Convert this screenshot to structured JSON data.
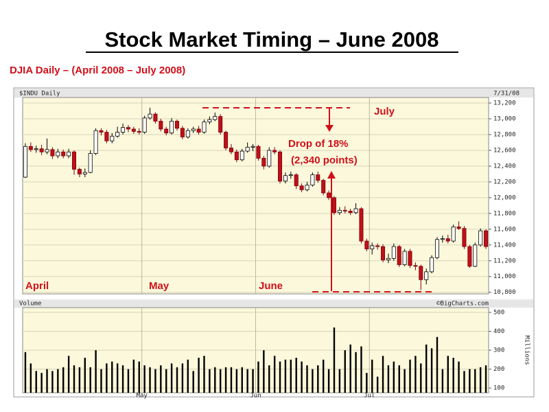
{
  "title": "Stock Market Timing – June 2008",
  "subtitle": "DJIA Daily – (April 2008 – July 2008)",
  "chart_data": [
    {
      "type": "candlestick",
      "title": "$INDU Daily",
      "date": "7/31/08",
      "source": "©BigCharts.com",
      "month_labels": [
        "April",
        "May",
        "June",
        "July"
      ],
      "drop_label": [
        "Drop of 18%",
        "(2,340 points)"
      ],
      "up_color": "#ffffff",
      "down_color": "#c0101a",
      "grid": true,
      "open": [
        12260,
        12650,
        12610,
        12620,
        12580,
        12610,
        12530,
        12580,
        12530,
        12580,
        12360,
        12300,
        12320,
        12560,
        12850,
        12830,
        12720,
        12780,
        12830,
        12890,
        12870,
        12840,
        12830,
        13010,
        13060,
        12970,
        12870,
        12820,
        12970,
        12880,
        12770,
        12850,
        12870,
        12830,
        12960,
        12990,
        13030,
        12830,
        12630,
        12580,
        12480,
        12590,
        12640,
        12650,
        12500,
        12400,
        12600,
        12580,
        12210,
        12280,
        12290,
        12150,
        12100,
        12160,
        12290,
        12220,
        12060,
        12000,
        11810,
        11840,
        11830,
        11810,
        11860,
        11450,
        11350,
        11390,
        11380,
        11210,
        11230,
        11380,
        11150,
        11320,
        11140,
        11130,
        10960,
        11060,
        11240,
        11470,
        11480,
        11450,
        11630,
        11610,
        11380,
        11130,
        11400,
        11580
      ],
      "high": [
        12690,
        12700,
        12660,
        12670,
        12750,
        12640,
        12620,
        12610,
        12620,
        12600,
        12380,
        12370,
        12600,
        12880,
        12880,
        12860,
        12820,
        12900,
        12940,
        12920,
        12900,
        12880,
        13040,
        13140,
        13080,
        13000,
        12900,
        13010,
        12990,
        12910,
        12880,
        12900,
        12910,
        12990,
        13030,
        13080,
        13060,
        12850,
        12680,
        12610,
        12620,
        12700,
        12680,
        12670,
        12530,
        12640,
        12640,
        12600,
        12320,
        12330,
        12310,
        12180,
        12200,
        12320,
        12330,
        12240,
        12090,
        12020,
        11880,
        11890,
        11860,
        11930,
        11880,
        11480,
        11430,
        11420,
        11410,
        11290,
        11420,
        11400,
        11350,
        11350,
        11180,
        11150,
        11100,
        11270,
        11500,
        11520,
        11530,
        11660,
        11700,
        11640,
        11400,
        11430,
        11610,
        11600
      ],
      "low": [
        12250,
        12580,
        12570,
        12540,
        12550,
        12490,
        12500,
        12500,
        12500,
        12290,
        12260,
        12260,
        12310,
        12540,
        12790,
        12690,
        12690,
        12760,
        12800,
        12830,
        12810,
        12800,
        12810,
        12990,
        12940,
        12840,
        12790,
        12800,
        12850,
        12740,
        12750,
        12820,
        12800,
        12810,
        12930,
        12970,
        12800,
        12600,
        12550,
        12450,
        12460,
        12570,
        12590,
        12470,
        12360,
        12380,
        12550,
        12180,
        12180,
        12240,
        12110,
        12070,
        12080,
        12140,
        12190,
        12030,
        11970,
        11780,
        11780,
        11800,
        11780,
        11790,
        11420,
        11320,
        11280,
        11340,
        11180,
        11170,
        11200,
        11120,
        11130,
        11110,
        11080,
        10830,
        10900,
        11040,
        11220,
        11430,
        11420,
        11430,
        11590,
        11350,
        11110,
        11120,
        11380,
        11350
      ],
      "close": [
        12650,
        12610,
        12620,
        12580,
        12610,
        12530,
        12580,
        12530,
        12580,
        12360,
        12300,
        12320,
        12560,
        12850,
        12830,
        12720,
        12780,
        12830,
        12890,
        12870,
        12840,
        12830,
        13010,
        13060,
        12970,
        12870,
        12820,
        12970,
        12880,
        12770,
        12850,
        12870,
        12830,
        12960,
        12990,
        13030,
        12830,
        12630,
        12580,
        12480,
        12590,
        12640,
        12650,
        12500,
        12400,
        12600,
        12580,
        12210,
        12280,
        12290,
        12150,
        12100,
        12160,
        12290,
        12220,
        12060,
        12000,
        11810,
        11840,
        11830,
        11810,
        11860,
        11450,
        11350,
        11390,
        11380,
        11210,
        11230,
        11380,
        11150,
        11320,
        11140,
        11130,
        10960,
        11060,
        11240,
        11470,
        11480,
        11450,
        11630,
        11610,
        11380,
        11130,
        11400,
        11580,
        11380
      ],
      "ylim": [
        10780,
        13270
      ],
      "yticks": [
        {
          "value": 10800,
          "label": "10,800"
        },
        {
          "value": 11000,
          "label": "11,000"
        },
        {
          "value": 11200,
          "label": "11,200"
        },
        {
          "value": 11400,
          "label": "11,400"
        },
        {
          "value": 11600,
          "label": "11,600"
        },
        {
          "value": 11800,
          "label": "11,800"
        },
        {
          "value": 12000,
          "label": "12,000"
        },
        {
          "value": 12200,
          "label": "12,200"
        },
        {
          "value": 12400,
          "label": "12,400"
        },
        {
          "value": 12600,
          "label": "12,600"
        },
        {
          "value": 12800,
          "label": "12,800"
        },
        {
          "value": 13000,
          "label": "13,000"
        },
        {
          "value": 13200,
          "label": "13,200"
        }
      ]
    },
    {
      "type": "bar",
      "title": "Volume",
      "y_label": "Millions",
      "color": "#000000",
      "grid": true,
      "categories": [
        null,
        null,
        null,
        null,
        null,
        null,
        null,
        null,
        null,
        null,
        null,
        null,
        null,
        null,
        null,
        null,
        null,
        null,
        null,
        null,
        null,
        null,
        "May",
        null,
        null,
        null,
        null,
        null,
        null,
        null,
        null,
        null,
        null,
        null,
        null,
        null,
        null,
        null,
        null,
        null,
        null,
        null,
        null,
        "Jun",
        null,
        null,
        null,
        null,
        null,
        null,
        null,
        null,
        null,
        null,
        null,
        null,
        null,
        null,
        null,
        null,
        null,
        null,
        null,
        null,
        "Jul",
        null,
        null,
        null,
        null,
        null,
        null,
        null,
        null,
        null,
        null,
        null,
        null,
        null,
        null,
        null,
        null,
        null,
        null,
        null,
        null,
        null
      ],
      "values": [
        290,
        230,
        190,
        180,
        200,
        190,
        200,
        210,
        270,
        220,
        210,
        260,
        210,
        300,
        200,
        230,
        240,
        230,
        220,
        200,
        250,
        240,
        220,
        210,
        200,
        220,
        200,
        230,
        210,
        230,
        250,
        190,
        260,
        270,
        200,
        210,
        200,
        210,
        210,
        200,
        210,
        200,
        200,
        240,
        300,
        220,
        270,
        240,
        250,
        250,
        260,
        240,
        220,
        200,
        220,
        250,
        200,
        420,
        200,
        300,
        330,
        290,
        320,
        180,
        250,
        160,
        270,
        220,
        240,
        220,
        200,
        250,
        270,
        230,
        330,
        310,
        370,
        200,
        270,
        260,
        240,
        190,
        200,
        200,
        210,
        220
      ],
      "ylim": [
        75,
        525
      ],
      "yticks": [
        100,
        200,
        300,
        400,
        500
      ]
    }
  ]
}
